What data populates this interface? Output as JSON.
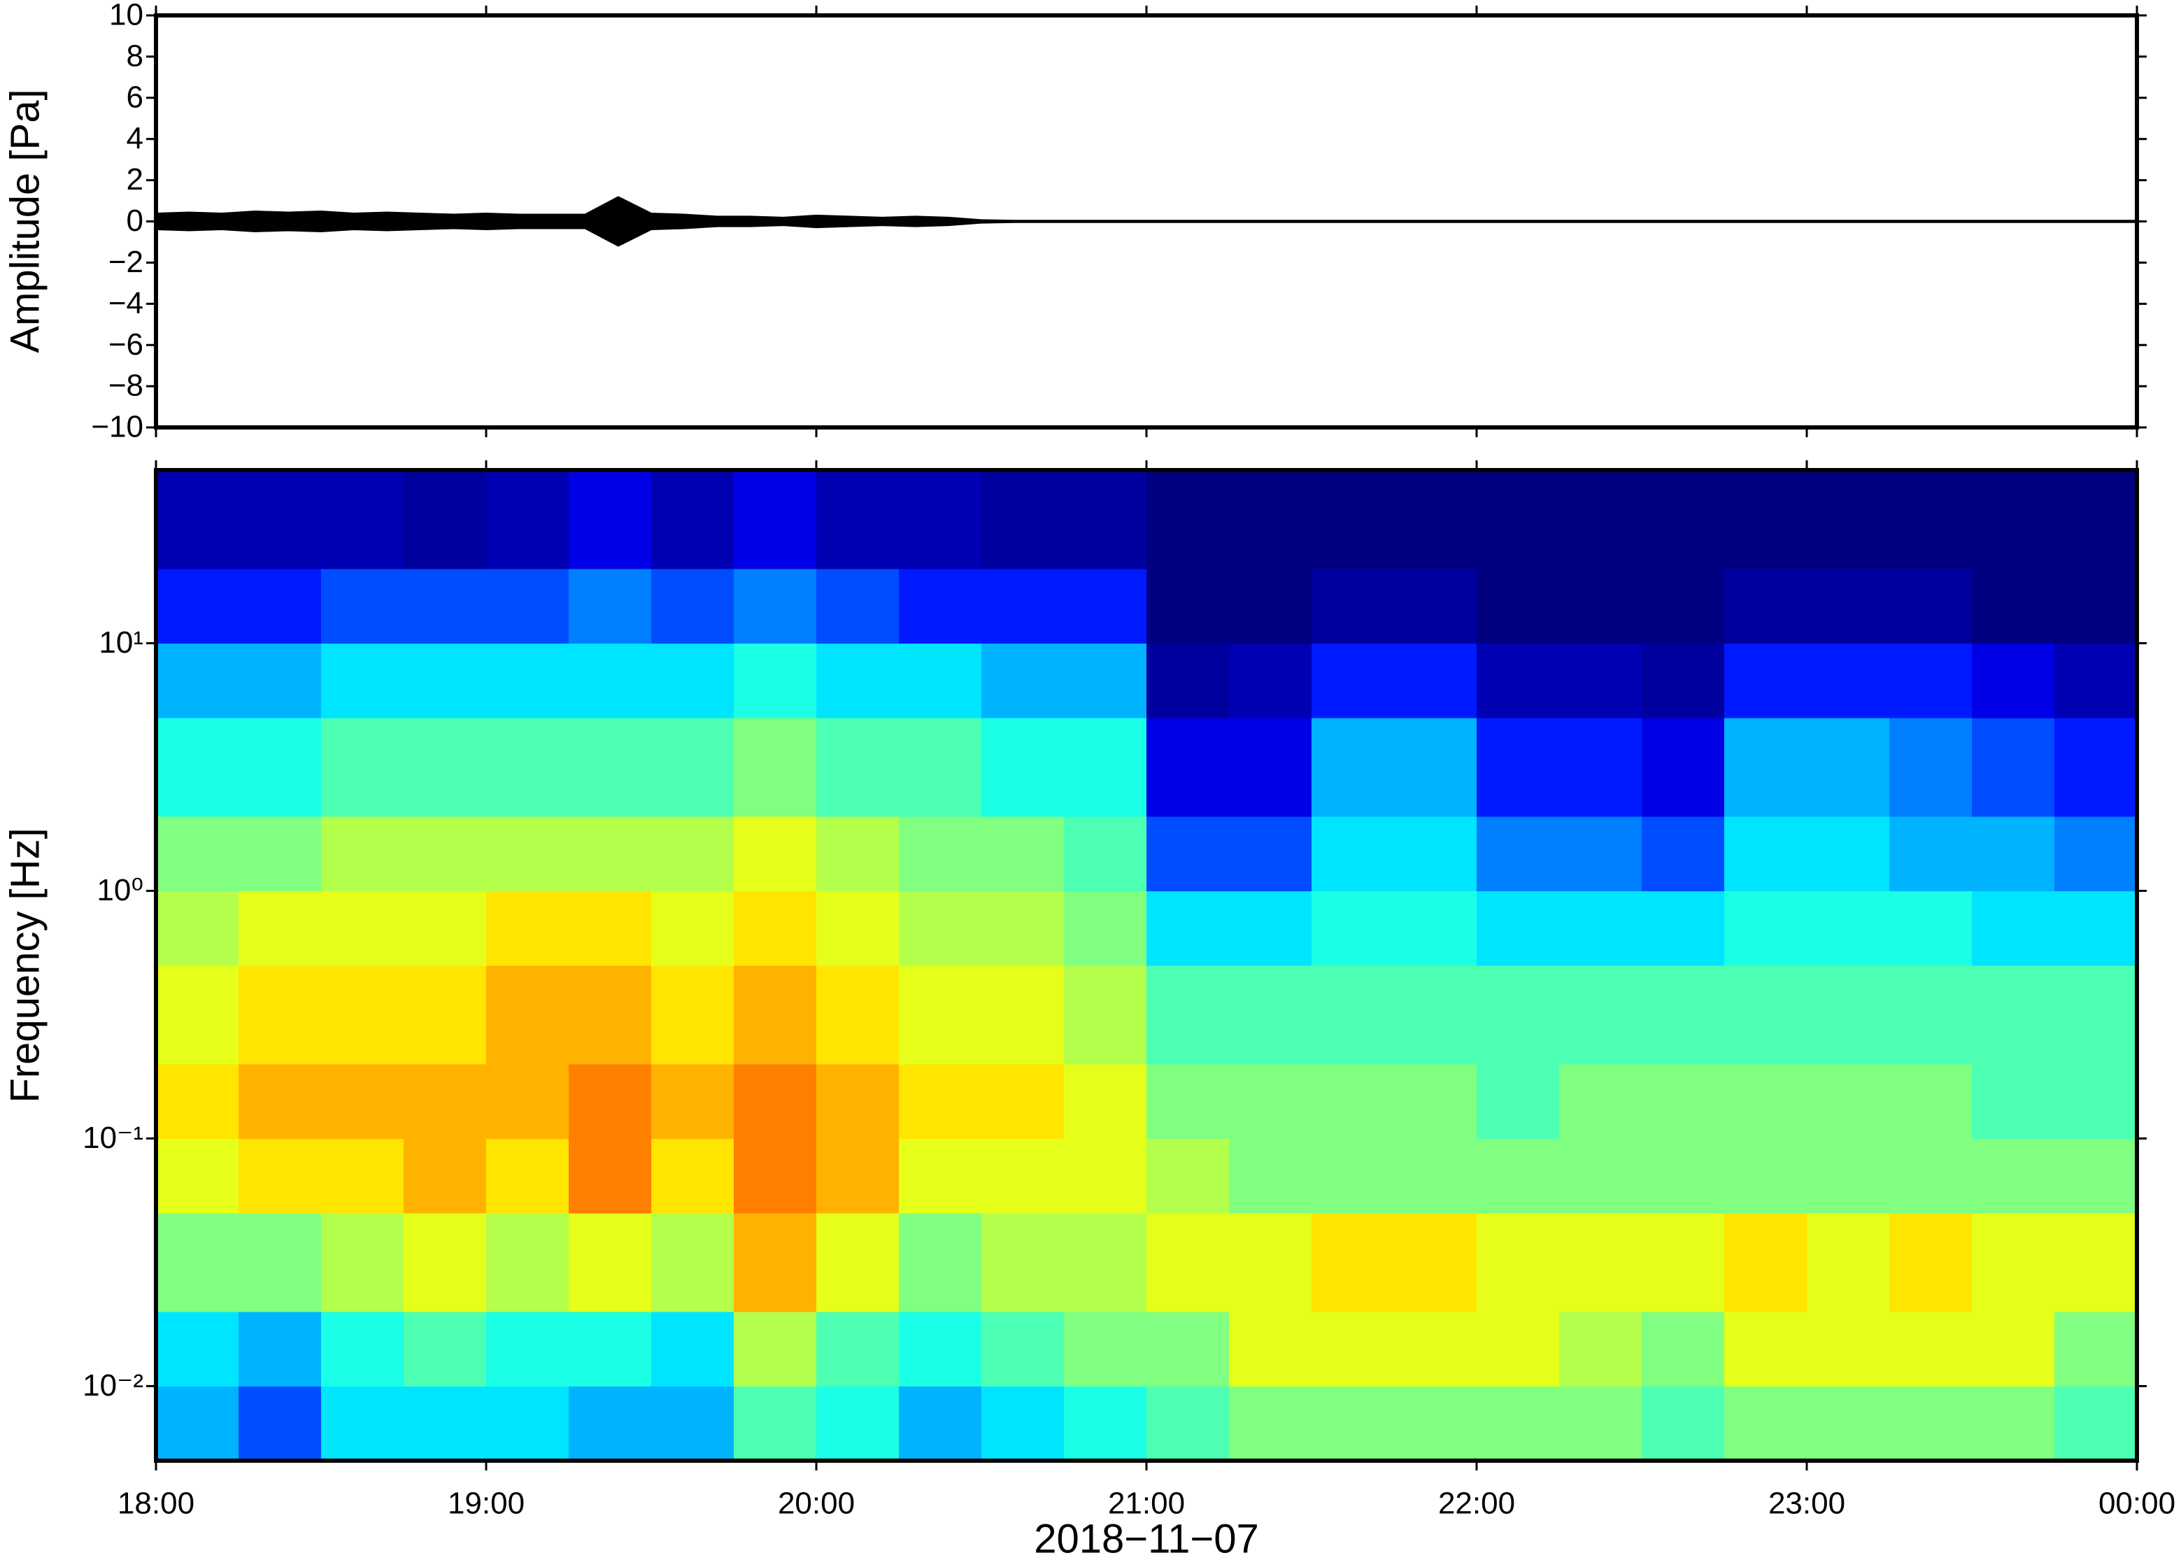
{
  "chart_data": [
    {
      "type": "envelope",
      "ylabel": "Amplitude [Pa]",
      "color": "#000000",
      "x": [
        18.0,
        18.1,
        18.2,
        18.3,
        18.4,
        18.5,
        18.6,
        18.7,
        18.8,
        18.9,
        19.0,
        19.1,
        19.2,
        19.3,
        19.4,
        19.5,
        19.6,
        19.7,
        19.8,
        19.9,
        20.0,
        20.1,
        20.2,
        20.3,
        20.4,
        20.5,
        20.6,
        20.7,
        20.8,
        20.9,
        21.0,
        21.1,
        21.2,
        21.3,
        21.4,
        21.5,
        21.6,
        21.7,
        21.8,
        21.9,
        22.0,
        22.1,
        22.2,
        22.3,
        22.4,
        22.5,
        22.6,
        22.7,
        22.8,
        22.9,
        23.0,
        23.1,
        23.2,
        23.3,
        23.4,
        23.5,
        23.6,
        23.7,
        23.8,
        23.9,
        24.0
      ],
      "values": [
        0.4,
        0.45,
        0.4,
        0.5,
        0.45,
        0.5,
        0.4,
        0.45,
        0.4,
        0.35,
        0.4,
        0.35,
        0.35,
        0.35,
        1.2,
        0.4,
        0.35,
        0.25,
        0.25,
        0.2,
        0.3,
        0.25,
        0.2,
        0.25,
        0.2,
        0.08,
        0.05,
        0.05,
        0.05,
        0.05,
        0.05,
        0.05,
        0.05,
        0.05,
        0.05,
        0.05,
        0.05,
        0.05,
        0.05,
        0.05,
        0.05,
        0.05,
        0.05,
        0.05,
        0.05,
        0.05,
        0.05,
        0.05,
        0.05,
        0.05,
        0.05,
        0.05,
        0.05,
        0.05,
        0.05,
        0.05,
        0.05,
        0.05,
        0.05,
        0.05,
        0.05
      ],
      "xlim": [
        18,
        24
      ],
      "ylim": [
        -10,
        10
      ],
      "yticks": [
        {
          "value": -10,
          "label": "−10"
        },
        {
          "value": -8,
          "label": "−8"
        },
        {
          "value": -6,
          "label": "−6"
        },
        {
          "value": -4,
          "label": "−4"
        },
        {
          "value": -2,
          "label": "−2"
        },
        0,
        2,
        4,
        6,
        8,
        10
      ]
    },
    {
      "type": "heatmap",
      "ylabel": "Frequency [Hz]",
      "xlabel": "2018−11−07",
      "log_y": true,
      "colormap": "jet",
      "clim": [
        0,
        10
      ],
      "xlim": [
        18,
        24
      ],
      "xticks": [
        {
          "value": 18,
          "label": "18:00"
        },
        {
          "value": 19,
          "label": "19:00"
        },
        {
          "value": 20,
          "label": "20:00"
        },
        {
          "value": 21,
          "label": "21:00"
        },
        {
          "value": 22,
          "label": "22:00"
        },
        {
          "value": 23,
          "label": "23:00"
        },
        {
          "value": 24,
          "label": "00:00"
        }
      ],
      "ylim": [
        0.005,
        50
      ],
      "yticks": [
        {
          "value": 0.01,
          "label": "10⁻²"
        },
        {
          "value": 0.1,
          "label": "10⁻¹"
        },
        {
          "value": 1,
          "label": "10⁰"
        },
        {
          "value": 10,
          "label": "10¹"
        }
      ],
      "x_bins": [
        18,
        18.25,
        18.5,
        18.75,
        19,
        19.25,
        19.5,
        19.75,
        20,
        20.25,
        20.5,
        20.75,
        21,
        21.25,
        21.5,
        21.75,
        22,
        22.25,
        22.5,
        22.75,
        23,
        23.25,
        23.5,
        23.75,
        24
      ],
      "y_bins": [
        0.005,
        0.01,
        0.02,
        0.05,
        0.1,
        0.2,
        0.5,
        1,
        2,
        5,
        10,
        20,
        50
      ],
      "values": [
        [
          3,
          3.5,
          5,
          6,
          6.5,
          6,
          5.5,
          5,
          4,
          3,
          1.5,
          0.5
        ],
        [
          2,
          3,
          5,
          6.5,
          7,
          6.5,
          6,
          5,
          4,
          3,
          1.5,
          0.5
        ],
        [
          3.5,
          4,
          5.5,
          6.5,
          7,
          6.5,
          6,
          5.5,
          4.5,
          3.5,
          2,
          0.5
        ],
        [
          3.5,
          4.5,
          6,
          7,
          7,
          6.5,
          6,
          5.5,
          4.5,
          3.5,
          2,
          0.3
        ],
        [
          3.5,
          4,
          5.5,
          6.5,
          7,
          7,
          6.5,
          5.5,
          4.5,
          3.5,
          2,
          0.5
        ],
        [
          3,
          4,
          6,
          7.5,
          7.5,
          7,
          6.5,
          5.5,
          4.5,
          3.5,
          2.5,
          1
        ],
        [
          3,
          3.5,
          5.5,
          6.5,
          7,
          6.5,
          6,
          5.5,
          4.5,
          3.5,
          2,
          0.5
        ],
        [
          4.5,
          5.5,
          7,
          7.5,
          7.5,
          7,
          6.5,
          6,
          5,
          4,
          2.5,
          1
        ],
        [
          4,
          4.5,
          6,
          7,
          7,
          6.5,
          6,
          5.5,
          4.5,
          3.5,
          2,
          0.5
        ],
        [
          3,
          4,
          5,
          6,
          6.5,
          6,
          5.5,
          5,
          4.5,
          3.5,
          1.5,
          0.5
        ],
        [
          3.5,
          4.5,
          5.5,
          6,
          6.5,
          6,
          5.5,
          5,
          4,
          3,
          1.5,
          0.3
        ],
        [
          4,
          5,
          5.5,
          6,
          6,
          5.5,
          5,
          4.5,
          4,
          3,
          1.5,
          0.3
        ],
        [
          4.5,
          5,
          6,
          5.5,
          5,
          4.5,
          3.5,
          2,
          1,
          0.3,
          0,
          0
        ],
        [
          5,
          6,
          6,
          5,
          5,
          4.5,
          3.5,
          2,
          1,
          0.5,
          0,
          0
        ],
        [
          5,
          6,
          6.5,
          5,
          5,
          4.5,
          4,
          3.5,
          3,
          1.5,
          0.3,
          0
        ],
        [
          5,
          6,
          6.5,
          5,
          5,
          4.5,
          4,
          3.5,
          3,
          1.5,
          0.3,
          0
        ],
        [
          5,
          6,
          6,
          5,
          4.5,
          4.5,
          3.5,
          2.5,
          1.5,
          0.5,
          0,
          0
        ],
        [
          5,
          5.5,
          6,
          5,
          5,
          4.5,
          3.5,
          2.5,
          1.5,
          0.5,
          0,
          0
        ],
        [
          4.5,
          5,
          6,
          5,
          5,
          4.5,
          3.5,
          2,
          1,
          0.3,
          0,
          0
        ],
        [
          5,
          6,
          6.5,
          5,
          5,
          4.5,
          4,
          3.5,
          3,
          1.5,
          0.3,
          0
        ],
        [
          5,
          6,
          6,
          5,
          5,
          4.5,
          4,
          3.5,
          3,
          1.5,
          0.3,
          0
        ],
        [
          5,
          6,
          6.5,
          5,
          5,
          4.5,
          4,
          3,
          2.5,
          1.5,
          0.3,
          0
        ],
        [
          5,
          6,
          6,
          5,
          4.5,
          4.5,
          3.5,
          3,
          2,
          1,
          0,
          0
        ],
        [
          4.5,
          5,
          6,
          5,
          4.5,
          4.5,
          3.5,
          2.5,
          1.5,
          0.5,
          0,
          0
        ]
      ]
    }
  ]
}
